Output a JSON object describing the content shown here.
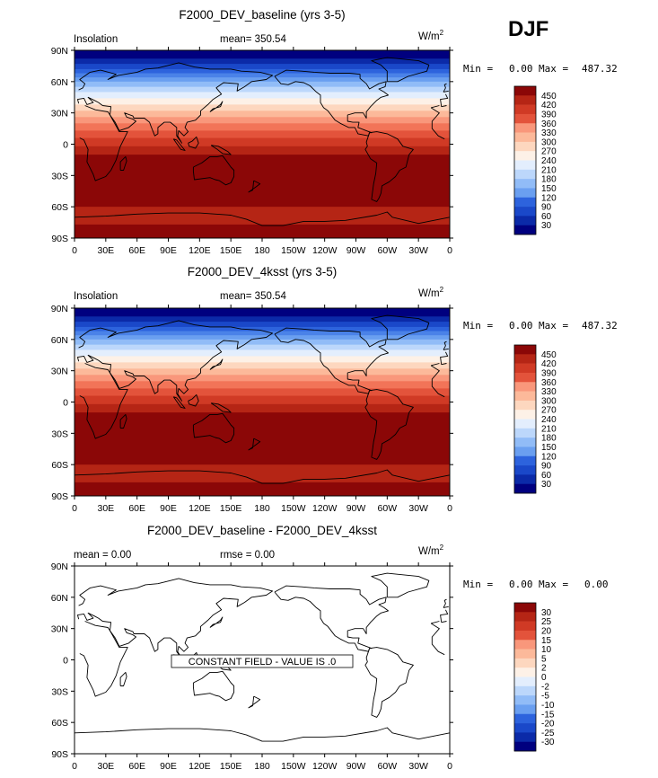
{
  "season_label": "DJF",
  "contour_colors": [
    "#00007f",
    "#0b2aa8",
    "#1a48c9",
    "#2d63dd",
    "#4a82e8",
    "#6a9ff0",
    "#91bcf7",
    "#bcd7fb",
    "#e3eefd",
    "#fdf1e7",
    "#fdd7bf",
    "#fcb99a",
    "#f9977b",
    "#f27458",
    "#e3533b",
    "#d03a25",
    "#b52515",
    "#8b0707"
  ],
  "chart_data": [
    {
      "type": "contour-map",
      "title": "F2000_DEV_baseline (yrs 3-5)",
      "field_label": "Insolation",
      "stat_text": "mean=  350.54",
      "units_text": "W/m",
      "units_sup": "2",
      "min_label": "Min =",
      "min_value": "0.00",
      "max_label": "Max =",
      "max_value": "487.32",
      "x_ticks": [
        "0",
        "30E",
        "60E",
        "90E",
        "120E",
        "150E",
        "180",
        "150W",
        "120W",
        "90W",
        "60W",
        "30W",
        "0"
      ],
      "y_ticks": [
        "90N",
        "60N",
        "30N",
        "0",
        "30S",
        "60S",
        "90S"
      ],
      "levels": [
        "450",
        "420",
        "390",
        "360",
        "330",
        "300",
        "270",
        "240",
        "210",
        "180",
        "150",
        "120",
        "90",
        "60",
        "30"
      ],
      "note": "",
      "zonal_bands": [
        {
          "lat_top": 90,
          "lat_bottom": 82,
          "color": "#00007f"
        },
        {
          "lat_top": 82,
          "lat_bottom": 77,
          "color": "#0b2aa8"
        },
        {
          "lat_top": 77,
          "lat_bottom": 72,
          "color": "#1a48c9"
        },
        {
          "lat_top": 72,
          "lat_bottom": 68,
          "color": "#2d63dd"
        },
        {
          "lat_top": 68,
          "lat_bottom": 64,
          "color": "#4a82e8"
        },
        {
          "lat_top": 64,
          "lat_bottom": 60,
          "color": "#6a9ff0"
        },
        {
          "lat_top": 60,
          "lat_bottom": 55,
          "color": "#91bcf7"
        },
        {
          "lat_top": 55,
          "lat_bottom": 50,
          "color": "#bcd7fb"
        },
        {
          "lat_top": 50,
          "lat_bottom": 44,
          "color": "#e3eefd"
        },
        {
          "lat_top": 44,
          "lat_bottom": 38,
          "color": "#fdf1e7"
        },
        {
          "lat_top": 38,
          "lat_bottom": 32,
          "color": "#fdd7bf"
        },
        {
          "lat_top": 32,
          "lat_bottom": 26,
          "color": "#fcb99a"
        },
        {
          "lat_top": 26,
          "lat_bottom": 20,
          "color": "#f9977b"
        },
        {
          "lat_top": 20,
          "lat_bottom": 13,
          "color": "#f27458"
        },
        {
          "lat_top": 13,
          "lat_bottom": 6,
          "color": "#e3533b"
        },
        {
          "lat_top": 6,
          "lat_bottom": -2,
          "color": "#d03a25"
        },
        {
          "lat_top": -2,
          "lat_bottom": -10,
          "color": "#b52515"
        },
        {
          "lat_top": -10,
          "lat_bottom": -60,
          "color": "#8b0707"
        },
        {
          "lat_top": -60,
          "lat_bottom": -77,
          "color": "#b52515"
        },
        {
          "lat_top": -77,
          "lat_bottom": -90,
          "color": "#8b0707"
        }
      ]
    },
    {
      "type": "contour-map",
      "title": "F2000_DEV_4ksst (yrs 3-5)",
      "field_label": "Insolation",
      "stat_text": "mean=  350.54",
      "units_text": "W/m",
      "units_sup": "2",
      "min_label": "Min =",
      "min_value": "0.00",
      "max_label": "Max =",
      "max_value": "487.32",
      "x_ticks": [
        "0",
        "30E",
        "60E",
        "90E",
        "120E",
        "150E",
        "180",
        "150W",
        "120W",
        "90W",
        "60W",
        "30W",
        "0"
      ],
      "y_ticks": [
        "90N",
        "60N",
        "30N",
        "0",
        "30S",
        "60S",
        "90S"
      ],
      "levels": [
        "450",
        "420",
        "390",
        "360",
        "330",
        "300",
        "270",
        "240",
        "210",
        "180",
        "150",
        "120",
        "90",
        "60",
        "30"
      ],
      "note": "",
      "zonal_bands": [
        {
          "lat_top": 90,
          "lat_bottom": 82,
          "color": "#00007f"
        },
        {
          "lat_top": 82,
          "lat_bottom": 77,
          "color": "#0b2aa8"
        },
        {
          "lat_top": 77,
          "lat_bottom": 72,
          "color": "#1a48c9"
        },
        {
          "lat_top": 72,
          "lat_bottom": 68,
          "color": "#2d63dd"
        },
        {
          "lat_top": 68,
          "lat_bottom": 64,
          "color": "#4a82e8"
        },
        {
          "lat_top": 64,
          "lat_bottom": 60,
          "color": "#6a9ff0"
        },
        {
          "lat_top": 60,
          "lat_bottom": 55,
          "color": "#91bcf7"
        },
        {
          "lat_top": 55,
          "lat_bottom": 50,
          "color": "#bcd7fb"
        },
        {
          "lat_top": 50,
          "lat_bottom": 44,
          "color": "#e3eefd"
        },
        {
          "lat_top": 44,
          "lat_bottom": 38,
          "color": "#fdf1e7"
        },
        {
          "lat_top": 38,
          "lat_bottom": 32,
          "color": "#fdd7bf"
        },
        {
          "lat_top": 32,
          "lat_bottom": 26,
          "color": "#fcb99a"
        },
        {
          "lat_top": 26,
          "lat_bottom": 20,
          "color": "#f9977b"
        },
        {
          "lat_top": 20,
          "lat_bottom": 13,
          "color": "#f27458"
        },
        {
          "lat_top": 13,
          "lat_bottom": 6,
          "color": "#e3533b"
        },
        {
          "lat_top": 6,
          "lat_bottom": -2,
          "color": "#d03a25"
        },
        {
          "lat_top": -2,
          "lat_bottom": -10,
          "color": "#b52515"
        },
        {
          "lat_top": -10,
          "lat_bottom": -60,
          "color": "#8b0707"
        },
        {
          "lat_top": -60,
          "lat_bottom": -77,
          "color": "#b52515"
        },
        {
          "lat_top": -77,
          "lat_bottom": -90,
          "color": "#8b0707"
        }
      ]
    },
    {
      "type": "contour-map",
      "title": "F2000_DEV_baseline - F2000_DEV_4ksst",
      "field_label": "mean =     0.00",
      "stat_text": "rmse =     0.00",
      "units_text": "W/m",
      "units_sup": "2",
      "min_label": "Min =",
      "min_value": "0.00",
      "max_label": "Max =",
      "max_value": "0.00",
      "x_ticks": [
        "0",
        "30E",
        "60E",
        "90E",
        "120E",
        "150E",
        "180",
        "150W",
        "120W",
        "90W",
        "60W",
        "30W",
        "0"
      ],
      "y_ticks": [
        "90N",
        "60N",
        "30N",
        "0",
        "30S",
        "60S",
        "90S"
      ],
      "levels": [
        "30",
        "25",
        "20",
        "15",
        "10",
        "5",
        "2",
        "0",
        "-2",
        "-5",
        "-10",
        "-15",
        "-20",
        "-25",
        "-30"
      ],
      "note": "CONSTANT FIELD - VALUE IS .0",
      "zonal_bands": []
    }
  ]
}
